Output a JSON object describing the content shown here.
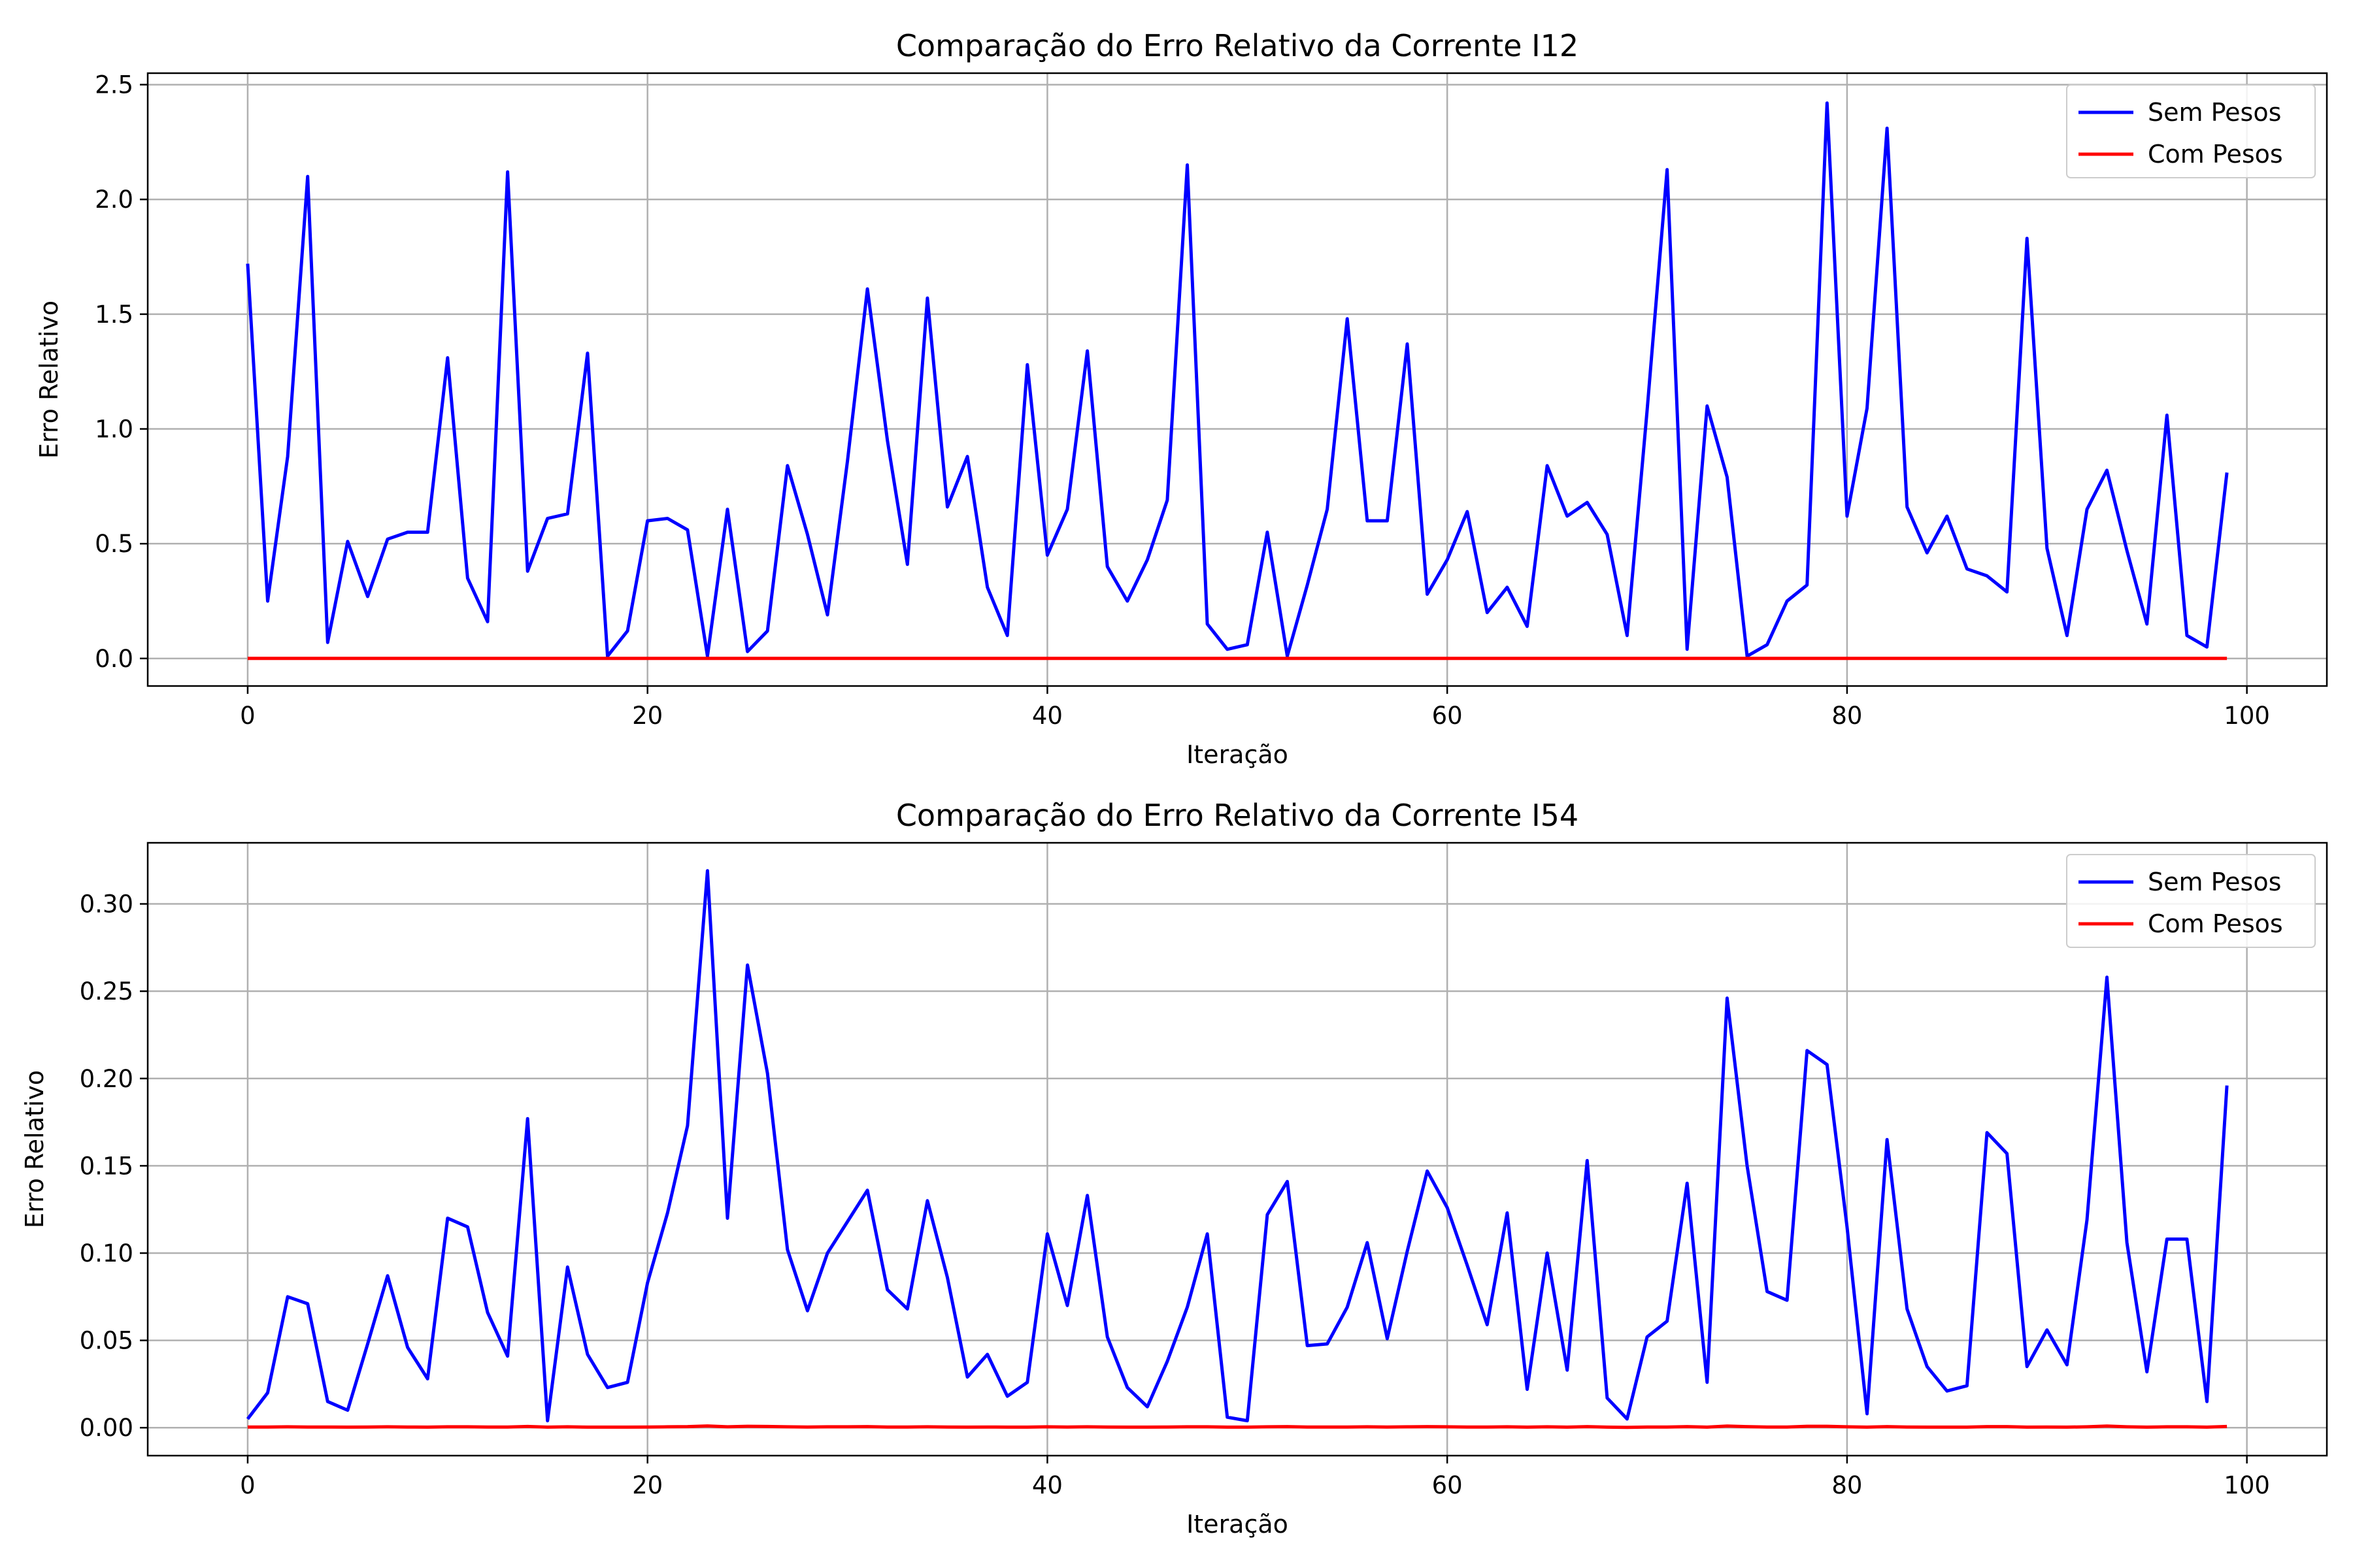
{
  "chart_data": [
    {
      "type": "line",
      "title": "Comparação do Erro Relativo da Corrente I12",
      "xlabel": "Iteração",
      "ylabel": "Erro Relativo",
      "xlim": [
        -5,
        104
      ],
      "ylim": [
        -0.12,
        2.55
      ],
      "xticks": [
        0,
        20,
        40,
        60,
        80,
        100
      ],
      "yticks": [
        0.0,
        0.5,
        1.0,
        1.5,
        2.0,
        2.5
      ],
      "ytick_decimals": 1,
      "grid": true,
      "legend_position": "top-right",
      "series": [
        {
          "name": "Sem Pesos",
          "color": "#0000ff",
          "values": [
            1.72,
            0.25,
            0.88,
            2.1,
            0.07,
            0.51,
            0.27,
            0.52,
            0.55,
            0.55,
            1.31,
            0.35,
            0.16,
            2.12,
            0.38,
            0.61,
            0.63,
            1.33,
            0.01,
            0.12,
            0.6,
            0.61,
            0.56,
            0.01,
            0.65,
            0.03,
            0.12,
            0.84,
            0.54,
            0.19,
            0.86,
            1.61,
            0.95,
            0.41,
            1.57,
            0.66,
            0.88,
            0.31,
            0.1,
            1.28,
            0.45,
            0.65,
            1.34,
            0.4,
            0.25,
            0.43,
            0.69,
            2.15,
            0.15,
            0.04,
            0.06,
            0.55,
            0.01,
            0.32,
            0.65,
            1.48,
            0.6,
            0.6,
            1.37,
            0.28,
            0.43,
            0.64,
            0.2,
            0.31,
            0.14,
            0.84,
            0.62,
            0.68,
            0.54,
            0.1,
            1.08,
            2.13,
            0.04,
            1.1,
            0.79,
            0.01,
            0.06,
            0.25,
            0.32,
            2.42,
            0.62,
            1.09,
            2.31,
            0.66,
            0.46,
            0.62,
            0.39,
            0.36,
            0.29,
            1.83,
            0.48,
            0.1,
            0.65,
            0.82,
            0.47,
            0.15,
            1.06,
            0.1,
            0.05,
            0.81
          ]
        },
        {
          "name": "Com Pesos",
          "color": "#ff0000",
          "values": [
            0.0,
            0.0,
            0.0,
            0.0,
            0.0,
            0.0,
            0.0,
            0.0,
            0.0,
            0.0,
            0.0,
            0.0,
            0.0,
            0.0,
            0.0,
            0.0,
            0.0,
            0.0,
            0.0,
            0.0,
            0.0,
            0.0,
            0.0,
            0.0,
            0.0,
            0.0,
            0.0,
            0.0,
            0.0,
            0.0,
            0.0,
            0.0,
            0.0,
            0.0,
            0.0,
            0.0,
            0.0,
            0.0,
            0.0,
            0.0,
            0.0,
            0.0,
            0.0,
            0.0,
            0.0,
            0.0,
            0.0,
            0.0,
            0.0,
            0.0,
            0.0,
            0.0,
            0.0,
            0.0,
            0.0,
            0.0,
            0.0,
            0.0,
            0.0,
            0.0,
            0.0,
            0.0,
            0.0,
            0.0,
            0.0,
            0.0,
            0.0,
            0.0,
            0.0,
            0.0,
            0.0,
            0.0,
            0.0,
            0.0,
            0.0,
            0.0,
            0.0,
            0.0,
            0.0,
            0.0,
            0.0,
            0.0,
            0.0,
            0.0,
            0.0,
            0.0,
            0.0,
            0.0,
            0.0,
            0.0,
            0.0,
            0.0,
            0.0,
            0.0,
            0.0,
            0.0,
            0.0,
            0.0,
            0.0,
            0.0
          ]
        }
      ]
    },
    {
      "type": "line",
      "title": "Comparação do Erro Relativo da Corrente I54",
      "xlabel": "Iteração",
      "ylabel": "Erro Relativo",
      "xlim": [
        -5,
        104
      ],
      "ylim": [
        -0.016,
        0.335
      ],
      "xticks": [
        0,
        20,
        40,
        60,
        80,
        100
      ],
      "yticks": [
        0.0,
        0.05,
        0.1,
        0.15,
        0.2,
        0.25,
        0.3
      ],
      "ytick_decimals": 2,
      "grid": true,
      "legend_position": "top-right",
      "series": [
        {
          "name": "Sem Pesos",
          "color": "#0000ff",
          "values": [
            0.005,
            0.02,
            0.075,
            0.071,
            0.015,
            0.01,
            0.048,
            0.087,
            0.046,
            0.028,
            0.12,
            0.115,
            0.066,
            0.041,
            0.177,
            0.004,
            0.092,
            0.042,
            0.023,
            0.026,
            0.083,
            0.123,
            0.173,
            0.319,
            0.12,
            0.265,
            0.203,
            0.102,
            0.067,
            0.1,
            0.118,
            0.136,
            0.079,
            0.068,
            0.13,
            0.086,
            0.029,
            0.042,
            0.018,
            0.026,
            0.111,
            0.07,
            0.133,
            0.052,
            0.023,
            0.012,
            0.038,
            0.069,
            0.111,
            0.006,
            0.004,
            0.122,
            0.141,
            0.047,
            0.048,
            0.069,
            0.106,
            0.051,
            0.101,
            0.147,
            0.126,
            0.093,
            0.059,
            0.123,
            0.022,
            0.1,
            0.033,
            0.153,
            0.017,
            0.005,
            0.052,
            0.061,
            0.14,
            0.026,
            0.246,
            0.15,
            0.078,
            0.073,
            0.216,
            0.208,
            0.115,
            0.008,
            0.165,
            0.068,
            0.035,
            0.021,
            0.024,
            0.169,
            0.157,
            0.035,
            0.056,
            0.036,
            0.119,
            0.258,
            0.106,
            0.032,
            0.108,
            0.108,
            0.015,
            0.196
          ]
        },
        {
          "name": "Com Pesos",
          "color": "#ff0000",
          "values": [
            0.0004,
            0.0004,
            0.0005,
            0.0004,
            0.0004,
            0.0003,
            0.0004,
            0.0005,
            0.0004,
            0.0003,
            0.0005,
            0.0005,
            0.0004,
            0.0004,
            0.0007,
            0.0003,
            0.0005,
            0.0003,
            0.0003,
            0.0003,
            0.0004,
            0.0005,
            0.0006,
            0.001,
            0.0005,
            0.0008,
            0.0007,
            0.0005,
            0.0004,
            0.0005,
            0.0005,
            0.0006,
            0.0004,
            0.0004,
            0.0005,
            0.0004,
            0.0003,
            0.0004,
            0.0003,
            0.0003,
            0.0005,
            0.0004,
            0.0005,
            0.0004,
            0.0003,
            0.0003,
            0.0004,
            0.0005,
            0.0005,
            0.0003,
            0.0003,
            0.0005,
            0.0006,
            0.0004,
            0.0004,
            0.0004,
            0.0005,
            0.0004,
            0.0005,
            0.0006,
            0.0005,
            0.0004,
            0.0004,
            0.0005,
            0.0003,
            0.0005,
            0.0003,
            0.0006,
            0.0003,
            0.0002,
            0.0004,
            0.0004,
            0.0006,
            0.0003,
            0.0009,
            0.0006,
            0.0004,
            0.0004,
            0.0008,
            0.0008,
            0.0005,
            0.0003,
            0.0006,
            0.0004,
            0.0003,
            0.0003,
            0.0003,
            0.0006,
            0.0006,
            0.0003,
            0.0004,
            0.0003,
            0.0005,
            0.0009,
            0.0005,
            0.0003,
            0.0005,
            0.0005,
            0.0003,
            0.0007
          ]
        }
      ]
    }
  ]
}
